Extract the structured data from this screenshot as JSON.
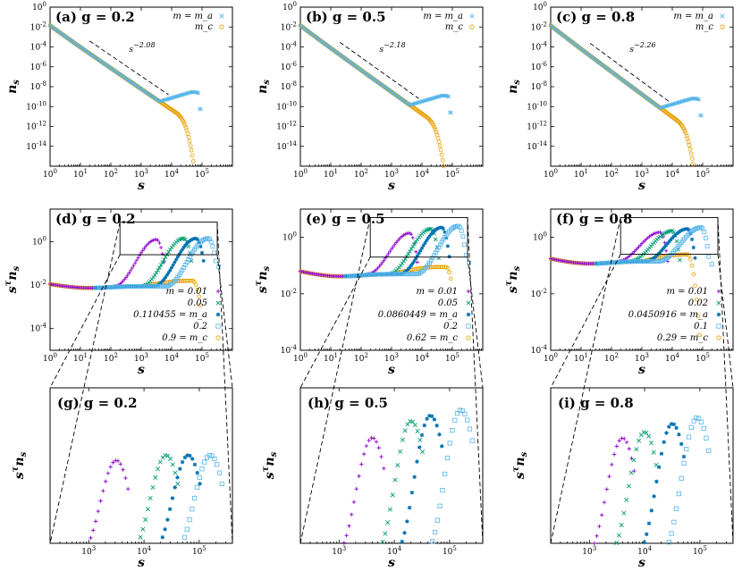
{
  "colors": {
    "c1": "#8e00d0",
    "c2": "#009e73",
    "c3": "#0072b2",
    "c4": "#56b4e9",
    "c5": "#e69f00"
  },
  "rows": [
    {
      "kind": "ns",
      "ylabel": "ns",
      "xlabel": "s",
      "panels": [
        {
          "label": "(a) g = 0.2",
          "exponent": "s^{-2.08}",
          "legend": [
            [
              "m = m_a",
              "c4",
              "x"
            ],
            [
              "m_c",
              "c5",
              "o"
            ]
          ]
        },
        {
          "label": "(b) g = 0.5",
          "exponent": "s^{-2.18}",
          "legend": [
            [
              "m = m_a",
              "c4",
              "x"
            ],
            [
              "m_c",
              "c5",
              "o"
            ]
          ]
        },
        {
          "label": "(c) g = 0.8",
          "exponent": "s^{-2.26}",
          "legend": [
            [
              "m = m_a",
              "c4",
              "x"
            ],
            [
              "m_c",
              "c5",
              "o"
            ]
          ]
        }
      ]
    },
    {
      "kind": "stns",
      "ylabel": "s^τ ns",
      "xlabel": "s",
      "panels": [
        {
          "label": "(d) g = 0.2",
          "legend": [
            [
              "m = 0.01",
              "c1",
              "+"
            ],
            [
              "0.05",
              "c2",
              "x"
            ],
            [
              "0.110455 = m_a",
              "c3",
              "*"
            ],
            [
              "0.2",
              "c4",
              "s"
            ],
            [
              "0.9 = m_c",
              "c5",
              "o"
            ]
          ]
        },
        {
          "label": "(e) g = 0.5",
          "legend": [
            [
              "m = 0.01",
              "c1",
              "+"
            ],
            [
              "0.05",
              "c2",
              "x"
            ],
            [
              "0.0860449 = m_a",
              "c3",
              "*"
            ],
            [
              "0.2",
              "c4",
              "s"
            ],
            [
              "0.62 = m_c",
              "c5",
              "o"
            ]
          ]
        },
        {
          "label": "(f) g = 0.8",
          "legend": [
            [
              "m = 0.01",
              "c1",
              "+"
            ],
            [
              "0.02",
              "c2",
              "x"
            ],
            [
              "0.0450916 = m_a",
              "c3",
              "*"
            ],
            [
              "0.1",
              "c4",
              "s"
            ],
            [
              "0.29 = m_c",
              "c5",
              "o"
            ]
          ]
        }
      ]
    },
    {
      "kind": "zoom",
      "ylabel": "s^τ ns",
      "xlabel": "s",
      "panels": [
        {
          "label": "(g) g = 0.2"
        },
        {
          "label": "(h) g = 0.5"
        },
        {
          "label": "(i) g = 0.8"
        }
      ]
    }
  ],
  "chart_data": [
    {
      "type": "scatter",
      "panel": "a",
      "title": "(a) g = 0.2",
      "xlabel": "s",
      "ylabel": "n_s",
      "xscale": "log",
      "yscale": "log",
      "xlim": [
        1,
        1000000
      ],
      "ylim": [
        1e-16,
        1
      ],
      "annotation": "s^{-2.08}",
      "series": [
        {
          "name": "m = m_a",
          "x": [
            1,
            10,
            100,
            1000,
            10000,
            30000,
            60000,
            100000
          ],
          "y": [
            0.01,
            0.0012,
            1e-05,
            1e-07,
            1e-09,
            2e-10,
            3e-10,
            3e-11
          ]
        },
        {
          "name": "m_c",
          "x": [
            1,
            10,
            100,
            1000,
            10000,
            30000,
            50000,
            60000
          ],
          "y": [
            0.01,
            0.0012,
            1e-05,
            1e-07,
            1e-09,
            2e-11,
            1e-13,
            1e-15
          ]
        }
      ]
    },
    {
      "type": "scatter",
      "panel": "b",
      "title": "(b) g = 0.5",
      "xlabel": "s",
      "ylabel": "n_s",
      "xscale": "log",
      "yscale": "log",
      "xlim": [
        1,
        1000000
      ],
      "ylim": [
        1e-16,
        1
      ],
      "annotation": "s^{-2.18}",
      "series": [
        {
          "name": "m = m_a",
          "x": [
            1,
            10,
            100,
            1000,
            10000,
            30000,
            60000,
            90000
          ],
          "y": [
            0.01,
            0.001,
            8e-06,
            6e-08,
            8e-10,
            1e-10,
            8e-11,
            1e-12
          ]
        },
        {
          "name": "m_c",
          "x": [
            1,
            10,
            100,
            1000,
            10000,
            30000,
            50000,
            70000
          ],
          "y": [
            0.01,
            0.001,
            8e-06,
            6e-08,
            8e-10,
            2e-11,
            1e-13,
            1e-15
          ]
        }
      ]
    },
    {
      "type": "scatter",
      "panel": "c",
      "title": "(c) g = 0.8",
      "xlabel": "s",
      "ylabel": "n_s",
      "xscale": "log",
      "yscale": "log",
      "xlim": [
        1,
        1000000
      ],
      "ylim": [
        1e-16,
        1
      ],
      "annotation": "s^{-2.26}",
      "series": [
        {
          "name": "m = m_a",
          "x": [
            1,
            10,
            100,
            1000,
            10000,
            30000,
            60000,
            80000
          ],
          "y": [
            0.01,
            0.0009,
            6e-06,
            4e-08,
            4e-10,
            1e-10,
            6e-11,
            3e-12
          ]
        },
        {
          "name": "m_c",
          "x": [
            1,
            10,
            100,
            1000,
            10000,
            30000,
            50000,
            70000
          ],
          "y": [
            0.01,
            0.0009,
            6e-06,
            4e-08,
            4e-10,
            1e-11,
            1e-13,
            1e-15
          ]
        }
      ]
    },
    {
      "type": "scatter",
      "panel": "d",
      "title": "(d) g = 0.2",
      "xlabel": "s",
      "ylabel": "s^τ n_s",
      "xscale": "log",
      "yscale": "log",
      "xlim": [
        1,
        1000000
      ],
      "ylim": [
        1e-05,
        30
      ],
      "series": [
        {
          "name": "m = 0.01",
          "peak_s": 3000,
          "peak": 1.3
        },
        {
          "name": "0.05",
          "peak_s": 25000,
          "peak": 1.4
        },
        {
          "name": "0.110455 = m_a",
          "peak_s": 60000,
          "peak": 1.4
        },
        {
          "name": "0.2",
          "peak_s": 150000,
          "peak": 1.4
        },
        {
          "name": "0.9 = m_c",
          "plateau": 0.009,
          "cutoff_s": 50000
        }
      ]
    },
    {
      "type": "scatter",
      "panel": "e",
      "title": "(e) g = 0.5",
      "xlabel": "s",
      "ylabel": "s^τ n_s",
      "xscale": "log",
      "yscale": "log",
      "xlim": [
        1,
        1000000
      ],
      "ylim": [
        0.0001,
        10
      ],
      "series": [
        {
          "name": "m = 0.01",
          "peak_s": 4000,
          "peak": 1.4
        },
        {
          "name": "0.05",
          "peak_s": 20000,
          "peak": 2
        },
        {
          "name": "0.0860449 = m_a",
          "peak_s": 45000,
          "peak": 2.3
        },
        {
          "name": "0.2",
          "peak_s": 150000,
          "peak": 2.5
        },
        {
          "name": "0.62 = m_c",
          "plateau": 0.06,
          "cutoff_s": 60000
        }
      ]
    },
    {
      "type": "scatter",
      "panel": "f",
      "title": "(f) g = 0.8",
      "xlabel": "s",
      "ylabel": "s^τ n_s",
      "xscale": "log",
      "yscale": "log",
      "xlim": [
        1,
        1000000
      ],
      "ylim": [
        0.0001,
        10
      ],
      "series": [
        {
          "name": "m = 0.01",
          "peak_s": 4000,
          "peak": 1.5
        },
        {
          "name": "0.02",
          "peak_s": 10000,
          "peak": 1.7
        },
        {
          "name": "0.0450916 = m_a",
          "peak_s": 30000,
          "peak": 2
        },
        {
          "name": "0.1",
          "peak_s": 90000,
          "peak": 2.2
        },
        {
          "name": "0.29 = m_c",
          "plateau": 0.15,
          "cutoff_s": 30000
        }
      ]
    }
  ]
}
